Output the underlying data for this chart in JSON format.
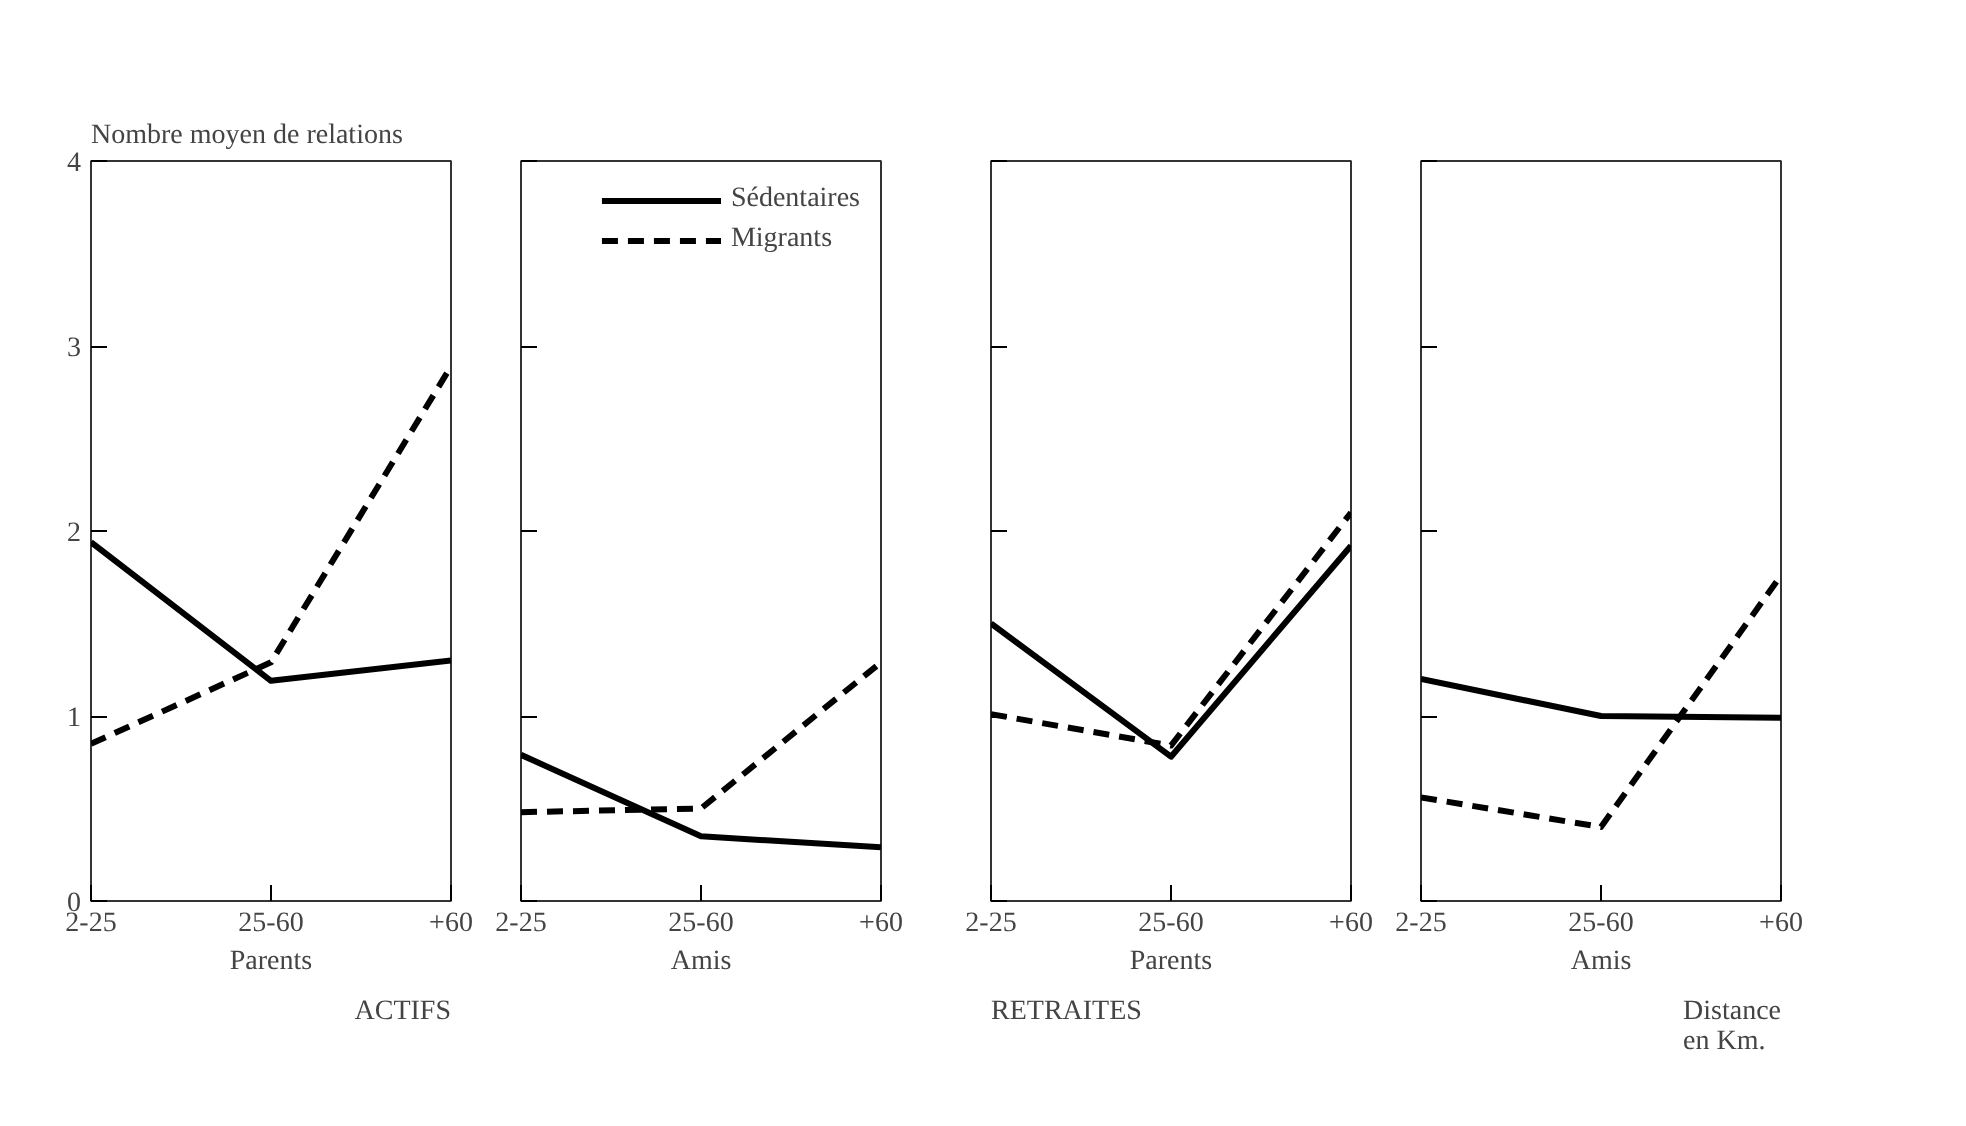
{
  "chart_data": [
    {
      "type": "line",
      "categories": [
        "2-25",
        "25-60",
        "+60"
      ],
      "xlabel": "Parents",
      "ylabel": "Nombre moyen de relations",
      "ylim": [
        0,
        4
      ],
      "yticks": [
        0,
        1,
        2,
        3,
        4
      ],
      "annotations": [
        "ACTIFS"
      ],
      "series": [
        {
          "color": "#000000",
          "line_style": "solid",
          "values": [
            1.94,
            1.19,
            1.3
          ]
        },
        {
          "color": "#000000",
          "line_style": "dashed",
          "values": [
            0.85,
            1.29,
            2.89
          ]
        }
      ]
    },
    {
      "type": "line",
      "categories": [
        "2-25",
        "25-60",
        "+60"
      ],
      "xlabel": "Amis",
      "ylim": [
        0,
        4
      ],
      "yticks": [
        0,
        1,
        2,
        3,
        4
      ],
      "tick_labels": "x",
      "legend": "top right",
      "series": [
        {
          "name": "Sédentaires",
          "color": "#000000",
          "line_style": "solid",
          "values": [
            0.79,
            0.35,
            0.29
          ]
        },
        {
          "name": "Migrants",
          "color": "#000000",
          "line_style": "dashed",
          "values": [
            0.48,
            0.5,
            1.29
          ]
        }
      ]
    },
    {
      "type": "line",
      "categories": [
        "2-25",
        "25-60",
        "+60"
      ],
      "xlabel": "Parents",
      "ylim": [
        0,
        4
      ],
      "yticks": [
        0,
        1,
        2,
        3,
        4
      ],
      "tick_labels": "x",
      "annotations": [
        "RETRAITES"
      ],
      "series": [
        {
          "color": "#000000",
          "line_style": "solid",
          "values": [
            1.5,
            0.78,
            1.92
          ]
        },
        {
          "color": "#000000",
          "line_style": "dashed",
          "values": [
            1.01,
            0.84,
            2.1
          ]
        }
      ]
    },
    {
      "type": "line",
      "categories": [
        "2-25",
        "25-60",
        "+60"
      ],
      "xlabel": "Amis",
      "ylim": [
        0,
        4
      ],
      "yticks": [
        0,
        1,
        2,
        3,
        4
      ],
      "tick_labels": "x",
      "annotations": [
        "Distance en Km."
      ],
      "series": [
        {
          "color": "#000000",
          "line_style": "solid",
          "values": [
            1.2,
            1.0,
            0.99
          ]
        },
        {
          "color": "#000000",
          "line_style": "dashed",
          "values": [
            0.56,
            0.4,
            1.76
          ]
        }
      ]
    }
  ]
}
